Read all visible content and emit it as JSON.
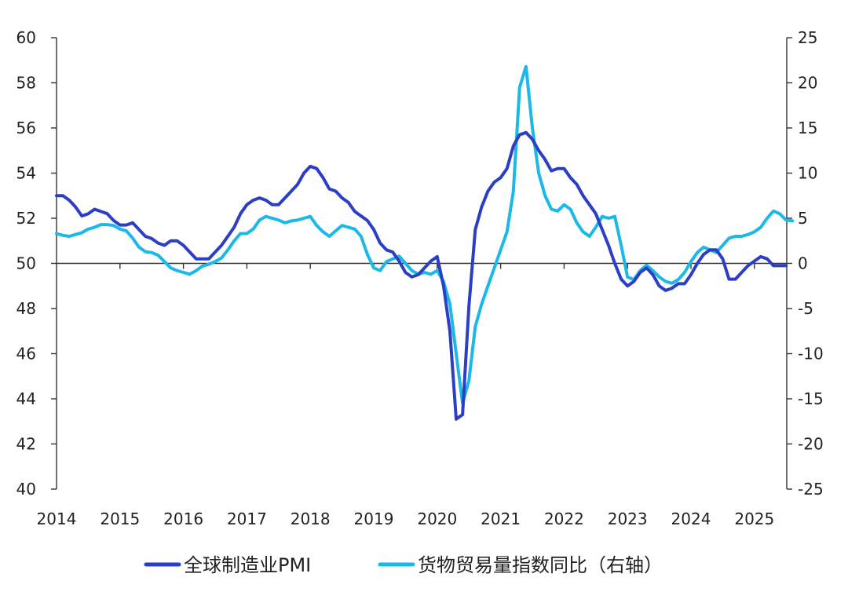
{
  "chart_data": {
    "type": "line",
    "title": "",
    "xlabel": "",
    "left_ylabel": "",
    "right_ylabel": "",
    "x_start": 2014.0,
    "x_end": 2025.6,
    "x_ticks": [
      "2014",
      "2015",
      "2016",
      "2017",
      "2018",
      "2019",
      "2020",
      "2021",
      "2022",
      "2023",
      "2024",
      "2025"
    ],
    "left_ylim": [
      40,
      60
    ],
    "left_ticks": [
      "40",
      "42",
      "44",
      "46",
      "48",
      "50",
      "52",
      "54",
      "56",
      "58",
      "60"
    ],
    "right_ylim": [
      -25,
      25
    ],
    "right_ticks": [
      "-25",
      "-20",
      "-15",
      "-10",
      "-5",
      "0",
      "5",
      "10",
      "15",
      "20",
      "25"
    ],
    "reference_line": 50,
    "legend_position": "bottom-center",
    "series": [
      {
        "name": "全球制造业PMI",
        "axis": "left",
        "color": "#2b3fc4",
        "points": [
          [
            2014.0,
            53.0
          ],
          [
            2014.1,
            53.0
          ],
          [
            2014.2,
            52.8
          ],
          [
            2014.3,
            52.5
          ],
          [
            2014.4,
            52.1
          ],
          [
            2014.5,
            52.2
          ],
          [
            2014.6,
            52.4
          ],
          [
            2014.7,
            52.3
          ],
          [
            2014.8,
            52.2
          ],
          [
            2014.9,
            51.9
          ],
          [
            2015.0,
            51.7
          ],
          [
            2015.1,
            51.7
          ],
          [
            2015.2,
            51.8
          ],
          [
            2015.3,
            51.5
          ],
          [
            2015.4,
            51.2
          ],
          [
            2015.5,
            51.1
          ],
          [
            2015.6,
            50.9
          ],
          [
            2015.7,
            50.8
          ],
          [
            2015.8,
            51.0
          ],
          [
            2015.9,
            51.0
          ],
          [
            2016.0,
            50.8
          ],
          [
            2016.1,
            50.5
          ],
          [
            2016.2,
            50.2
          ],
          [
            2016.3,
            50.2
          ],
          [
            2016.4,
            50.2
          ],
          [
            2016.5,
            50.5
          ],
          [
            2016.6,
            50.8
          ],
          [
            2016.7,
            51.2
          ],
          [
            2016.8,
            51.6
          ],
          [
            2016.9,
            52.2
          ],
          [
            2017.0,
            52.6
          ],
          [
            2017.1,
            52.8
          ],
          [
            2017.2,
            52.9
          ],
          [
            2017.3,
            52.8
          ],
          [
            2017.4,
            52.6
          ],
          [
            2017.5,
            52.6
          ],
          [
            2017.6,
            52.9
          ],
          [
            2017.7,
            53.2
          ],
          [
            2017.8,
            53.5
          ],
          [
            2017.9,
            54.0
          ],
          [
            2018.0,
            54.3
          ],
          [
            2018.1,
            54.2
          ],
          [
            2018.2,
            53.8
          ],
          [
            2018.3,
            53.3
          ],
          [
            2018.4,
            53.2
          ],
          [
            2018.5,
            52.9
          ],
          [
            2018.6,
            52.7
          ],
          [
            2018.7,
            52.3
          ],
          [
            2018.8,
            52.1
          ],
          [
            2018.9,
            51.9
          ],
          [
            2019.0,
            51.5
          ],
          [
            2019.1,
            50.9
          ],
          [
            2019.2,
            50.6
          ],
          [
            2019.3,
            50.5
          ],
          [
            2019.4,
            50.1
          ],
          [
            2019.5,
            49.6
          ],
          [
            2019.6,
            49.4
          ],
          [
            2019.7,
            49.5
          ],
          [
            2019.8,
            49.8
          ],
          [
            2019.9,
            50.1
          ],
          [
            2020.0,
            50.3
          ],
          [
            2020.1,
            49.0
          ],
          [
            2020.2,
            47.0
          ],
          [
            2020.3,
            43.1
          ],
          [
            2020.4,
            43.3
          ],
          [
            2020.5,
            48.1
          ],
          [
            2020.6,
            51.5
          ],
          [
            2020.7,
            52.5
          ],
          [
            2020.8,
            53.2
          ],
          [
            2020.9,
            53.6
          ],
          [
            2021.0,
            53.8
          ],
          [
            2021.1,
            54.2
          ],
          [
            2021.2,
            55.2
          ],
          [
            2021.3,
            55.7
          ],
          [
            2021.4,
            55.8
          ],
          [
            2021.5,
            55.5
          ],
          [
            2021.6,
            55.0
          ],
          [
            2021.7,
            54.6
          ],
          [
            2021.8,
            54.1
          ],
          [
            2021.9,
            54.2
          ],
          [
            2022.0,
            54.2
          ],
          [
            2022.1,
            53.8
          ],
          [
            2022.2,
            53.5
          ],
          [
            2022.3,
            53.0
          ],
          [
            2022.4,
            52.6
          ],
          [
            2022.5,
            52.2
          ],
          [
            2022.6,
            51.5
          ],
          [
            2022.7,
            50.8
          ],
          [
            2022.8,
            50.0
          ],
          [
            2022.9,
            49.3
          ],
          [
            2023.0,
            49.0
          ],
          [
            2023.1,
            49.2
          ],
          [
            2023.2,
            49.6
          ],
          [
            2023.3,
            49.8
          ],
          [
            2023.4,
            49.5
          ],
          [
            2023.5,
            49.0
          ],
          [
            2023.6,
            48.8
          ],
          [
            2023.7,
            48.9
          ],
          [
            2023.8,
            49.1
          ],
          [
            2023.9,
            49.1
          ],
          [
            2024.0,
            49.5
          ],
          [
            2024.1,
            50.0
          ],
          [
            2024.2,
            50.4
          ],
          [
            2024.3,
            50.6
          ],
          [
            2024.4,
            50.6
          ],
          [
            2024.5,
            50.2
          ],
          [
            2024.6,
            49.3
          ],
          [
            2024.7,
            49.3
          ],
          [
            2024.8,
            49.6
          ],
          [
            2024.9,
            49.9
          ],
          [
            2025.0,
            50.1
          ],
          [
            2025.1,
            50.3
          ],
          [
            2025.2,
            50.2
          ],
          [
            2025.3,
            49.9
          ],
          [
            2025.4,
            49.9
          ],
          [
            2025.5,
            49.9
          ]
        ]
      },
      {
        "name": "货物贸易量指数同比（右轴）",
        "axis": "right",
        "color": "#1cb8e8",
        "points": [
          [
            2014.0,
            3.3
          ],
          [
            2014.1,
            3.1
          ],
          [
            2014.2,
            3.0
          ],
          [
            2014.3,
            3.2
          ],
          [
            2014.4,
            3.4
          ],
          [
            2014.5,
            3.8
          ],
          [
            2014.6,
            4.0
          ],
          [
            2014.7,
            4.3
          ],
          [
            2014.8,
            4.3
          ],
          [
            2014.9,
            4.2
          ],
          [
            2015.0,
            3.8
          ],
          [
            2015.1,
            3.6
          ],
          [
            2015.2,
            2.8
          ],
          [
            2015.3,
            1.8
          ],
          [
            2015.4,
            1.3
          ],
          [
            2015.5,
            1.2
          ],
          [
            2015.6,
            0.9
          ],
          [
            2015.7,
            0.2
          ],
          [
            2015.8,
            -0.5
          ],
          [
            2015.9,
            -0.8
          ],
          [
            2016.0,
            -1.0
          ],
          [
            2016.1,
            -1.2
          ],
          [
            2016.2,
            -0.8
          ],
          [
            2016.3,
            -0.3
          ],
          [
            2016.4,
            -0.1
          ],
          [
            2016.5,
            0.2
          ],
          [
            2016.6,
            0.6
          ],
          [
            2016.7,
            1.5
          ],
          [
            2016.8,
            2.5
          ],
          [
            2016.9,
            3.3
          ],
          [
            2017.0,
            3.3
          ],
          [
            2017.1,
            3.8
          ],
          [
            2017.2,
            4.8
          ],
          [
            2017.3,
            5.2
          ],
          [
            2017.4,
            5.0
          ],
          [
            2017.5,
            4.8
          ],
          [
            2017.6,
            4.5
          ],
          [
            2017.7,
            4.7
          ],
          [
            2017.8,
            4.8
          ],
          [
            2017.9,
            5.0
          ],
          [
            2018.0,
            5.2
          ],
          [
            2018.1,
            4.2
          ],
          [
            2018.2,
            3.5
          ],
          [
            2018.3,
            3.0
          ],
          [
            2018.4,
            3.6
          ],
          [
            2018.5,
            4.2
          ],
          [
            2018.6,
            4.0
          ],
          [
            2018.7,
            3.8
          ],
          [
            2018.8,
            3.0
          ],
          [
            2018.9,
            1.0
          ],
          [
            2019.0,
            -0.5
          ],
          [
            2019.1,
            -0.8
          ],
          [
            2019.2,
            0.2
          ],
          [
            2019.3,
            0.5
          ],
          [
            2019.4,
            0.8
          ],
          [
            2019.5,
            0.0
          ],
          [
            2019.6,
            -0.8
          ],
          [
            2019.7,
            -1.2
          ],
          [
            2019.8,
            -1.0
          ],
          [
            2019.9,
            -1.2
          ],
          [
            2020.0,
            -0.8
          ],
          [
            2020.1,
            -2.0
          ],
          [
            2020.2,
            -4.5
          ],
          [
            2020.3,
            -10.0
          ],
          [
            2020.4,
            -15.5
          ],
          [
            2020.5,
            -13.0
          ],
          [
            2020.6,
            -7.0
          ],
          [
            2020.7,
            -4.5
          ],
          [
            2020.8,
            -2.5
          ],
          [
            2020.9,
            -0.5
          ],
          [
            2021.0,
            1.5
          ],
          [
            2021.1,
            3.5
          ],
          [
            2021.2,
            8.0
          ],
          [
            2021.3,
            19.5
          ],
          [
            2021.4,
            21.8
          ],
          [
            2021.5,
            15.0
          ],
          [
            2021.6,
            10.0
          ],
          [
            2021.7,
            7.5
          ],
          [
            2021.8,
            6.0
          ],
          [
            2021.9,
            5.8
          ],
          [
            2022.0,
            6.5
          ],
          [
            2022.1,
            6.0
          ],
          [
            2022.2,
            4.5
          ],
          [
            2022.3,
            3.5
          ],
          [
            2022.4,
            3.0
          ],
          [
            2022.5,
            4.0
          ],
          [
            2022.6,
            5.2
          ],
          [
            2022.7,
            5.0
          ],
          [
            2022.8,
            5.2
          ],
          [
            2022.9,
            2.0
          ],
          [
            2023.0,
            -1.5
          ],
          [
            2023.1,
            -1.8
          ],
          [
            2023.2,
            -0.8
          ],
          [
            2023.3,
            -0.2
          ],
          [
            2023.4,
            -0.8
          ],
          [
            2023.5,
            -1.5
          ],
          [
            2023.6,
            -2.0
          ],
          [
            2023.7,
            -2.2
          ],
          [
            2023.8,
            -1.8
          ],
          [
            2023.9,
            -1.0
          ],
          [
            2024.0,
            0.2
          ],
          [
            2024.1,
            1.2
          ],
          [
            2024.2,
            1.8
          ],
          [
            2024.3,
            1.5
          ],
          [
            2024.4,
            1.2
          ],
          [
            2024.5,
            2.0
          ],
          [
            2024.6,
            2.8
          ],
          [
            2024.7,
            3.0
          ],
          [
            2024.8,
            3.0
          ],
          [
            2024.9,
            3.2
          ],
          [
            2025.0,
            3.5
          ],
          [
            2025.1,
            4.0
          ],
          [
            2025.2,
            5.0
          ],
          [
            2025.3,
            5.8
          ],
          [
            2025.4,
            5.5
          ],
          [
            2025.5,
            4.8
          ],
          [
            2025.6,
            4.7
          ]
        ]
      }
    ]
  }
}
